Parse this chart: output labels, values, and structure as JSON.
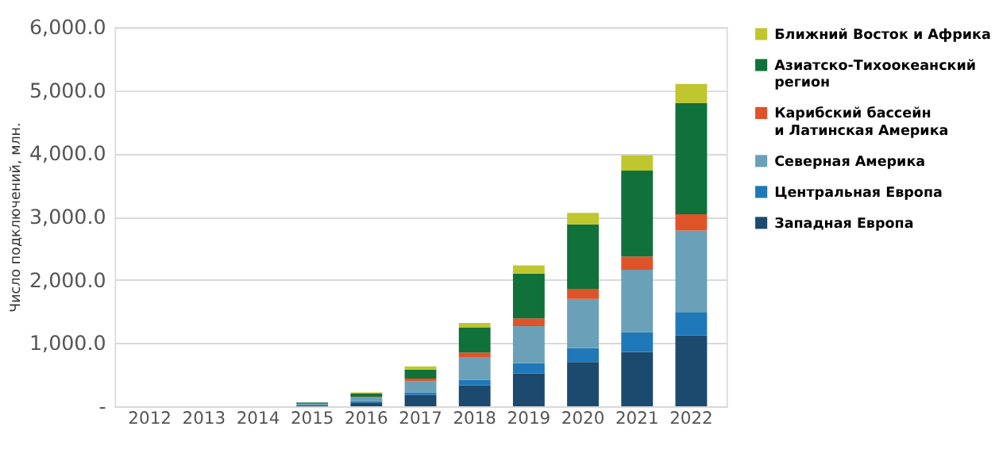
{
  "chart_data": {
    "type": "bar",
    "stacked": true,
    "ylabel": "Число подключений, млн.",
    "categories": [
      "2012",
      "2013",
      "2014",
      "2015",
      "2016",
      "2017",
      "2018",
      "2019",
      "2020",
      "2021",
      "2022"
    ],
    "series": [
      {
        "name": "Западная Европа",
        "color": "#1b4a6e",
        "values": [
          null,
          null,
          null,
          20,
          60,
          180,
          330,
          520,
          700,
          860,
          1120
        ]
      },
      {
        "name": "Центральная Европа",
        "color": "#1f78b8",
        "values": [
          null,
          null,
          null,
          null,
          20,
          40,
          90,
          160,
          220,
          310,
          370
        ]
      },
      {
        "name": "Северная Америка",
        "color": "#6aa0b8",
        "values": [
          null,
          null,
          null,
          20,
          60,
          180,
          360,
          590,
          780,
          990,
          1290
        ]
      },
      {
        "name": "Карибский бассейн и Латинская Америка",
        "color": "#df5329",
        "values": [
          null,
          null,
          null,
          null,
          10,
          40,
          70,
          120,
          160,
          210,
          260
        ]
      },
      {
        "name": "Азиатско-Тихоокеанский регион",
        "color": "#10713a",
        "values": [
          null,
          null,
          null,
          20,
          50,
          140,
          400,
          710,
          1020,
          1360,
          1760
        ]
      },
      {
        "name": "Ближний Восток и Африка",
        "color": "#bfc62e",
        "values": [
          null,
          null,
          null,
          null,
          20,
          50,
          70,
          130,
          180,
          240,
          300
        ]
      }
    ],
    "ylim": [
      0,
      6000
    ],
    "yticks": [
      {
        "value": 0,
        "label": "-"
      },
      {
        "value": 1000,
        "label": "1,000.0"
      },
      {
        "value": 2000,
        "label": "2,000.0"
      },
      {
        "value": 3000,
        "label": "3,000.0"
      },
      {
        "value": 4000,
        "label": "4,000.0"
      },
      {
        "value": 5000,
        "label": "5,000.0"
      },
      {
        "value": 6000,
        "label": "6,000.0"
      }
    ],
    "grid": "y",
    "legend": "right"
  }
}
